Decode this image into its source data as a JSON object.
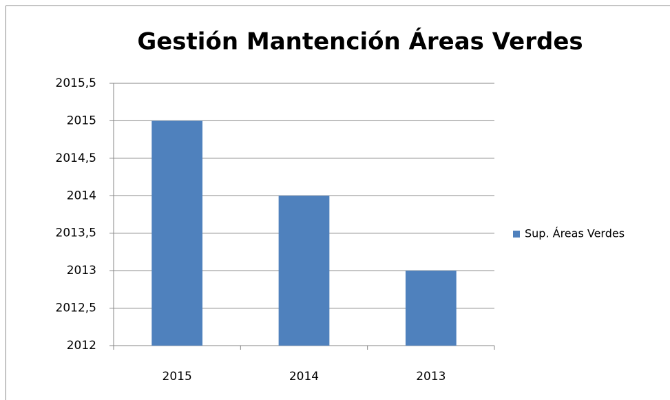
{
  "chart_data": {
    "type": "bar",
    "title": "Gestión Mantención Áreas Verdes",
    "categories": [
      "2015",
      "2014",
      "2013"
    ],
    "series": [
      {
        "name": "Sup. Áreas Verdes",
        "color": "#4f81bd",
        "values": [
          2015,
          2014,
          2013
        ]
      }
    ],
    "ylim": [
      2012,
      2015.5
    ],
    "yticks": [
      {
        "value": 2012,
        "label": "2012"
      },
      {
        "value": 2012.5,
        "label": "2012,5"
      },
      {
        "value": 2013,
        "label": "2013"
      },
      {
        "value": 2013.5,
        "label": "2013,5"
      },
      {
        "value": 2014,
        "label": "2014"
      },
      {
        "value": 2014.5,
        "label": "2014,5"
      },
      {
        "value": 2015,
        "label": "2015"
      },
      {
        "value": 2015.5,
        "label": "2015,5"
      }
    ],
    "grid": true,
    "legend": "right"
  }
}
